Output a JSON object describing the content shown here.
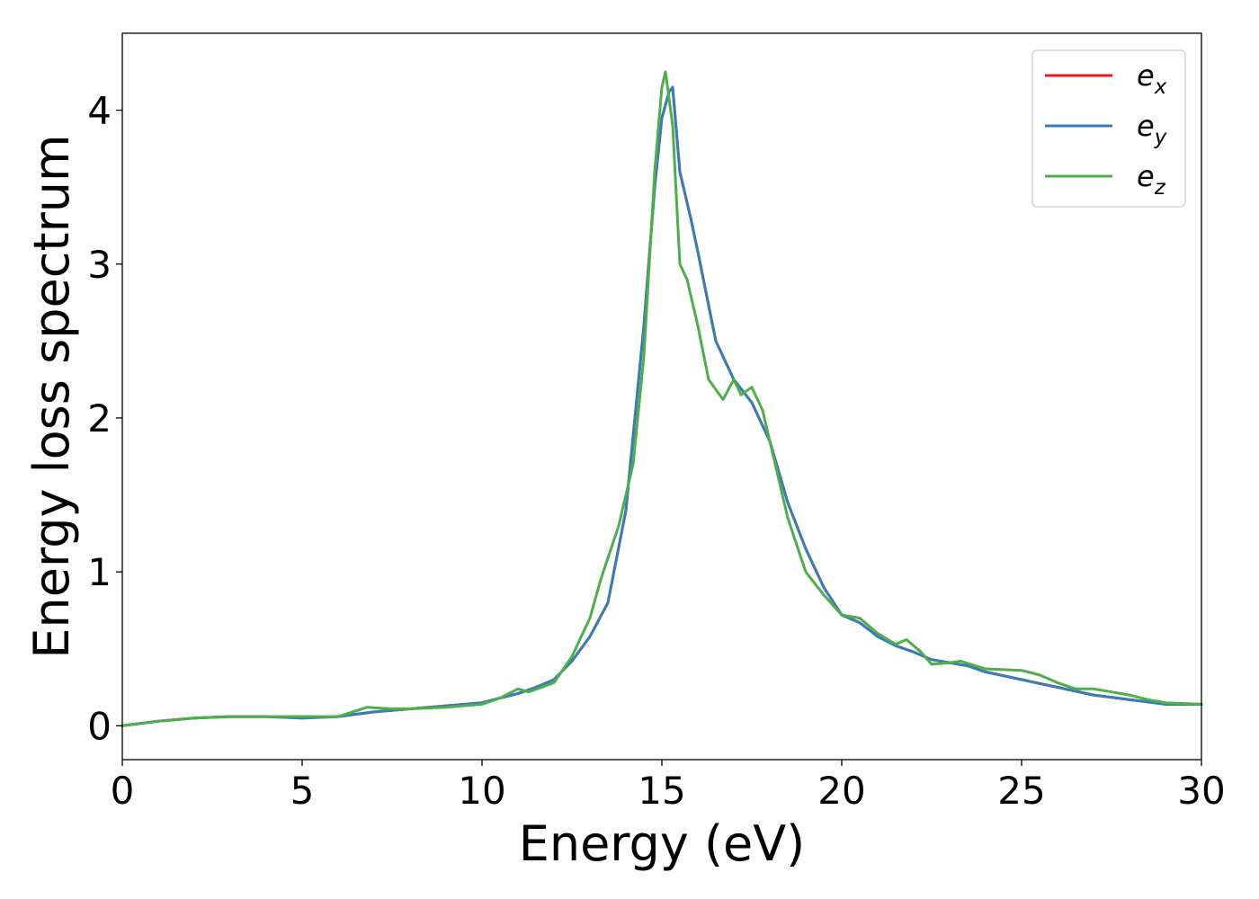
{
  "chart_data": {
    "type": "line",
    "xlabel": "Energy (eV)",
    "ylabel": "Energy loss spectrum",
    "xlim": [
      0,
      30
    ],
    "ylim": [
      -0.22,
      4.5
    ],
    "xticks": [
      0,
      5,
      10,
      15,
      20,
      25,
      30
    ],
    "yticks": [
      0,
      1,
      2,
      3,
      4
    ],
    "xtick_labels": [
      "0",
      "5",
      "10",
      "15",
      "20",
      "25",
      "30"
    ],
    "ytick_labels": [
      "0",
      "1",
      "2",
      "3",
      "4"
    ],
    "grid": false,
    "legend_position": "top-right",
    "legend": [
      {
        "base": "e",
        "sub": "x",
        "color": "#e41a1c"
      },
      {
        "base": "e",
        "sub": "y",
        "color": "#377eb8"
      },
      {
        "base": "e",
        "sub": "z",
        "color": "#4daf4a"
      }
    ],
    "series": [
      {
        "name": "e_x",
        "color": "#e41a1c",
        "x": [
          0,
          1,
          2,
          3,
          4,
          5,
          6,
          7,
          8,
          9,
          10,
          10.5,
          11,
          11.5,
          12,
          12.5,
          13,
          13.5,
          14,
          14.5,
          14.8,
          15,
          15.2,
          15.3,
          15.5,
          15.8,
          16,
          16.5,
          17,
          17.5,
          18,
          18.5,
          19,
          19.5,
          20,
          20.5,
          21,
          21.5,
          22,
          22.5,
          23,
          23.5,
          24,
          25,
          26,
          27,
          28,
          29,
          30
        ],
        "y": [
          0,
          0.03,
          0.05,
          0.06,
          0.06,
          0.05,
          0.06,
          0.09,
          0.11,
          0.13,
          0.15,
          0.18,
          0.21,
          0.25,
          0.3,
          0.42,
          0.58,
          0.8,
          1.4,
          2.6,
          3.5,
          3.95,
          4.12,
          4.15,
          3.6,
          3.3,
          3.08,
          2.5,
          2.25,
          2.1,
          1.85,
          1.45,
          1.15,
          0.9,
          0.72,
          0.67,
          0.58,
          0.52,
          0.48,
          0.43,
          0.41,
          0.39,
          0.35,
          0.3,
          0.25,
          0.2,
          0.17,
          0.14,
          0.14
        ]
      },
      {
        "name": "e_y",
        "color": "#377eb8",
        "x": [
          0,
          1,
          2,
          3,
          4,
          5,
          6,
          7,
          8,
          9,
          10,
          10.5,
          11,
          11.5,
          12,
          12.5,
          13,
          13.5,
          14,
          14.5,
          14.8,
          15,
          15.2,
          15.3,
          15.5,
          15.8,
          16,
          16.5,
          17,
          17.5,
          18,
          18.5,
          19,
          19.5,
          20,
          20.5,
          21,
          21.5,
          22,
          22.5,
          23,
          23.5,
          24,
          25,
          26,
          27,
          28,
          29,
          30
        ],
        "y": [
          0,
          0.03,
          0.05,
          0.06,
          0.06,
          0.05,
          0.06,
          0.09,
          0.11,
          0.13,
          0.15,
          0.18,
          0.21,
          0.25,
          0.3,
          0.42,
          0.58,
          0.8,
          1.4,
          2.6,
          3.5,
          3.95,
          4.12,
          4.15,
          3.6,
          3.3,
          3.08,
          2.5,
          2.25,
          2.1,
          1.85,
          1.45,
          1.15,
          0.9,
          0.72,
          0.67,
          0.58,
          0.52,
          0.48,
          0.43,
          0.41,
          0.39,
          0.35,
          0.3,
          0.25,
          0.2,
          0.17,
          0.14,
          0.14
        ]
      },
      {
        "name": "e_z",
        "color": "#4daf4a",
        "x": [
          0,
          1,
          2,
          3,
          4,
          5,
          6,
          6.8,
          7.5,
          8,
          9,
          10,
          10.5,
          11,
          11.3,
          12,
          12.5,
          13,
          13.3,
          13.8,
          14.2,
          14.5,
          14.8,
          15,
          15.1,
          15.3,
          15.5,
          15.7,
          16,
          16.3,
          16.7,
          17,
          17.2,
          17.5,
          17.8,
          18,
          18.5,
          19,
          19.5,
          20,
          20.5,
          21,
          21.5,
          21.8,
          22.2,
          22.5,
          23,
          23.3,
          24,
          25,
          25.5,
          26,
          26.5,
          27,
          27.5,
          28,
          28.5,
          29,
          30
        ],
        "y": [
          0,
          0.03,
          0.05,
          0.06,
          0.06,
          0.06,
          0.06,
          0.12,
          0.11,
          0.11,
          0.12,
          0.14,
          0.18,
          0.24,
          0.22,
          0.28,
          0.45,
          0.7,
          0.95,
          1.3,
          1.7,
          2.4,
          3.6,
          4.15,
          4.25,
          3.9,
          3.0,
          2.9,
          2.6,
          2.25,
          2.12,
          2.25,
          2.15,
          2.2,
          2.05,
          1.85,
          1.35,
          1.0,
          0.85,
          0.72,
          0.7,
          0.6,
          0.53,
          0.56,
          0.48,
          0.4,
          0.41,
          0.42,
          0.37,
          0.36,
          0.33,
          0.28,
          0.24,
          0.24,
          0.22,
          0.2,
          0.17,
          0.15,
          0.14
        ]
      }
    ]
  }
}
